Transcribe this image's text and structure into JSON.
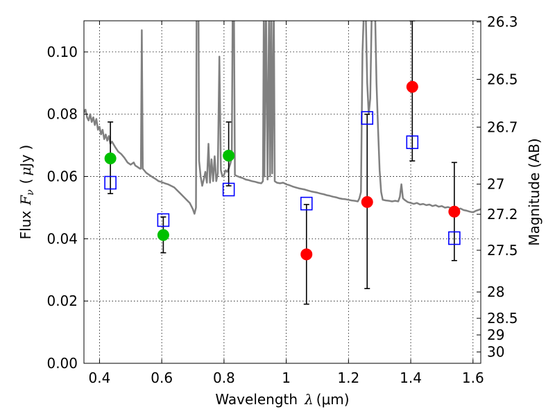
{
  "chart_data": {
    "type": "scatter",
    "xlabel_text": "Wavelength",
    "xlabel_symbol": "λ",
    "xlabel_unit": "(μm)",
    "ylabel_text": "Flux",
    "ylabel_symbol_main": "F",
    "ylabel_symbol_sub": "ν",
    "ylabel_unit_open": "(",
    "ylabel_unit_mu": "μ",
    "ylabel_unit_rest": "Jy )",
    "y2label": "Magnitude (AB)",
    "xlim": [
      0.35,
      1.625
    ],
    "ylim": [
      0,
      0.11
    ],
    "grid": true,
    "xticks": [
      0.4,
      0.6,
      0.8,
      1.0,
      1.2,
      1.4,
      1.6
    ],
    "xtick_labels": [
      "0.4",
      "0.6",
      "0.8",
      "1",
      "1.2",
      "1.4",
      "1.6"
    ],
    "yticks": [
      0,
      0.02,
      0.04,
      0.06,
      0.08,
      0.1
    ],
    "ytick_labels": [
      "0.00",
      "0.02",
      "0.04",
      "0.06",
      "0.08",
      "0.10"
    ],
    "y2ticks": [
      26.3,
      26.5,
      26.7,
      27,
      27.2,
      27.5,
      28,
      28.5,
      29,
      30
    ],
    "y2tick_labels": [
      "26.3",
      "26.5",
      "26.7",
      "27",
      "27.2",
      "27.5",
      "28",
      "28.5",
      "29",
      "30"
    ],
    "series": [
      {
        "marker": "circle",
        "color": "#00c000",
        "points": [
          {
            "x": 0.435,
            "y": 0.0658,
            "yerr_low": 0.0545,
            "yerr_high": 0.0775
          },
          {
            "x": 0.605,
            "y": 0.0412,
            "yerr_low": 0.0355,
            "yerr_high": 0.047
          },
          {
            "x": 0.815,
            "y": 0.0667,
            "yerr_low": 0.057,
            "yerr_high": 0.0775
          }
        ]
      },
      {
        "marker": "circle",
        "color": "#ff0000",
        "points": [
          {
            "x": 1.065,
            "y": 0.035,
            "yerr_low": 0.019,
            "yerr_high": 0.051
          },
          {
            "x": 1.26,
            "y": 0.0518,
            "yerr_low": 0.024,
            "yerr_high": 0.08
          },
          {
            "x": 1.405,
            "y": 0.0888,
            "yerr_low": 0.065,
            "yerr_high": 0.11
          },
          {
            "x": 1.54,
            "y": 0.0487,
            "yerr_low": 0.033,
            "yerr_high": 0.0645
          }
        ]
      },
      {
        "marker": "open-square",
        "color": "#0000ff",
        "points": [
          {
            "x": 0.435,
            "y": 0.058
          },
          {
            "x": 0.605,
            "y": 0.046
          },
          {
            "x": 0.815,
            "y": 0.0558
          },
          {
            "x": 1.065,
            "y": 0.0513
          },
          {
            "x": 1.26,
            "y": 0.0788
          },
          {
            "x": 1.405,
            "y": 0.071
          },
          {
            "x": 1.54,
            "y": 0.0402
          }
        ]
      },
      {
        "marker": "line",
        "color": "#808080",
        "points": [
          [
            0.35,
            0.0805
          ],
          [
            0.355,
            0.0815
          ],
          [
            0.36,
            0.079
          ],
          [
            0.365,
            0.078
          ],
          [
            0.37,
            0.08
          ],
          [
            0.375,
            0.0775
          ],
          [
            0.38,
            0.079
          ],
          [
            0.385,
            0.0765
          ],
          [
            0.39,
            0.0785
          ],
          [
            0.395,
            0.075
          ],
          [
            0.4,
            0.076
          ],
          [
            0.405,
            0.0735
          ],
          [
            0.41,
            0.075
          ],
          [
            0.415,
            0.072
          ],
          [
            0.42,
            0.0735
          ],
          [
            0.425,
            0.0715
          ],
          [
            0.43,
            0.073
          ],
          [
            0.435,
            0.0705
          ],
          [
            0.44,
            0.0712
          ],
          [
            0.45,
            0.0695
          ],
          [
            0.46,
            0.068
          ],
          [
            0.47,
            0.0672
          ],
          [
            0.48,
            0.066
          ],
          [
            0.49,
            0.0645
          ],
          [
            0.5,
            0.0638
          ],
          [
            0.51,
            0.0645
          ],
          [
            0.515,
            0.0635
          ],
          [
            0.52,
            0.0632
          ],
          [
            0.53,
            0.0625
          ],
          [
            0.533,
            0.0625
          ],
          [
            0.536,
            0.107
          ],
          [
            0.539,
            0.0625
          ],
          [
            0.545,
            0.0618
          ],
          [
            0.55,
            0.0612
          ],
          [
            0.56,
            0.0605
          ],
          [
            0.57,
            0.0598
          ],
          [
            0.58,
            0.0592
          ],
          [
            0.59,
            0.0585
          ],
          [
            0.6,
            0.0582
          ],
          [
            0.61,
            0.0578
          ],
          [
            0.62,
            0.0575
          ],
          [
            0.63,
            0.057
          ],
          [
            0.64,
            0.0565
          ],
          [
            0.65,
            0.0555
          ],
          [
            0.66,
            0.0545
          ],
          [
            0.67,
            0.0535
          ],
          [
            0.68,
            0.0525
          ],
          [
            0.69,
            0.0515
          ],
          [
            0.7,
            0.0495
          ],
          [
            0.705,
            0.048
          ],
          [
            0.71,
            0.05
          ],
          [
            0.712,
            0.115
          ],
          [
            0.718,
            0.115
          ],
          [
            0.72,
            0.065
          ],
          [
            0.725,
            0.06
          ],
          [
            0.73,
            0.057
          ],
          [
            0.735,
            0.059
          ],
          [
            0.74,
            0.0615
          ],
          [
            0.745,
            0.058
          ],
          [
            0.75,
            0.0705
          ],
          [
            0.755,
            0.058
          ],
          [
            0.76,
            0.0655
          ],
          [
            0.765,
            0.0585
          ],
          [
            0.77,
            0.0665
          ],
          [
            0.775,
            0.0585
          ],
          [
            0.78,
            0.061
          ],
          [
            0.785,
            0.0985
          ],
          [
            0.79,
            0.062
          ],
          [
            0.795,
            0.06
          ],
          [
            0.8,
            0.0605
          ],
          [
            0.805,
            0.062
          ],
          [
            0.81,
            0.0615
          ],
          [
            0.815,
            0.0625
          ],
          [
            0.82,
            0.064
          ],
          [
            0.825,
            0.066
          ],
          [
            0.828,
            0.115
          ],
          [
            0.832,
            0.115
          ],
          [
            0.835,
            0.0605
          ],
          [
            0.84,
            0.0602
          ],
          [
            0.85,
            0.0598
          ],
          [
            0.86,
            0.0595
          ],
          [
            0.87,
            0.059
          ],
          [
            0.88,
            0.0588
          ],
          [
            0.89,
            0.0585
          ],
          [
            0.9,
            0.0583
          ],
          [
            0.91,
            0.058
          ],
          [
            0.92,
            0.0578
          ],
          [
            0.925,
            0.0585
          ],
          [
            0.928,
            0.115
          ],
          [
            0.93,
            0.06
          ],
          [
            0.935,
            0.115
          ],
          [
            0.94,
            0.059
          ],
          [
            0.945,
            0.115
          ],
          [
            0.948,
            0.06
          ],
          [
            0.952,
            0.115
          ],
          [
            0.955,
            0.061
          ],
          [
            0.96,
            0.115
          ],
          [
            0.963,
            0.0585
          ],
          [
            0.97,
            0.058
          ],
          [
            0.98,
            0.0578
          ],
          [
            0.99,
            0.058
          ],
          [
            1.0,
            0.0575
          ],
          [
            1.01,
            0.0572
          ],
          [
            1.02,
            0.0568
          ],
          [
            1.03,
            0.0565
          ],
          [
            1.04,
            0.0562
          ],
          [
            1.05,
            0.056
          ],
          [
            1.06,
            0.0558
          ],
          [
            1.07,
            0.0555
          ],
          [
            1.08,
            0.0552
          ],
          [
            1.09,
            0.055
          ],
          [
            1.1,
            0.0548
          ],
          [
            1.11,
            0.0545
          ],
          [
            1.12,
            0.0543
          ],
          [
            1.13,
            0.054
          ],
          [
            1.14,
            0.0538
          ],
          [
            1.15,
            0.0535
          ],
          [
            1.16,
            0.0533
          ],
          [
            1.17,
            0.053
          ],
          [
            1.18,
            0.0528
          ],
          [
            1.19,
            0.0527
          ],
          [
            1.2,
            0.0525
          ],
          [
            1.21,
            0.0523
          ],
          [
            1.22,
            0.0522
          ],
          [
            1.23,
            0.052
          ],
          [
            1.235,
            0.053
          ],
          [
            1.24,
            0.055
          ],
          [
            1.245,
            0.1
          ],
          [
            1.25,
            0.115
          ],
          [
            1.255,
            0.115
          ],
          [
            1.26,
            0.09
          ],
          [
            1.265,
            0.08
          ],
          [
            1.27,
            0.085
          ],
          [
            1.275,
            0.115
          ],
          [
            1.28,
            0.115
          ],
          [
            1.285,
            0.115
          ],
          [
            1.29,
            0.09
          ],
          [
            1.295,
            0.075
          ],
          [
            1.3,
            0.062
          ],
          [
            1.305,
            0.055
          ],
          [
            1.31,
            0.0525
          ],
          [
            1.32,
            0.0523
          ],
          [
            1.33,
            0.0522
          ],
          [
            1.34,
            0.052
          ],
          [
            1.35,
            0.0522
          ],
          [
            1.36,
            0.052
          ],
          [
            1.365,
            0.0535
          ],
          [
            1.37,
            0.0575
          ],
          [
            1.375,
            0.053
          ],
          [
            1.38,
            0.0525
          ],
          [
            1.39,
            0.0518
          ],
          [
            1.4,
            0.0515
          ],
          [
            1.41,
            0.0512
          ],
          [
            1.42,
            0.0515
          ],
          [
            1.43,
            0.051
          ],
          [
            1.44,
            0.0512
          ],
          [
            1.45,
            0.0508
          ],
          [
            1.46,
            0.051
          ],
          [
            1.47,
            0.0505
          ],
          [
            1.48,
            0.0508
          ],
          [
            1.49,
            0.0503
          ],
          [
            1.5,
            0.0505
          ],
          [
            1.51,
            0.05
          ],
          [
            1.52,
            0.0502
          ],
          [
            1.53,
            0.0498
          ],
          [
            1.54,
            0.05
          ],
          [
            1.55,
            0.0495
          ],
          [
            1.56,
            0.0497
          ],
          [
            1.57,
            0.0492
          ],
          [
            1.58,
            0.049
          ],
          [
            1.59,
            0.0487
          ],
          [
            1.6,
            0.0485
          ],
          [
            1.61,
            0.049
          ],
          [
            1.625,
            0.0495
          ]
        ]
      }
    ]
  }
}
